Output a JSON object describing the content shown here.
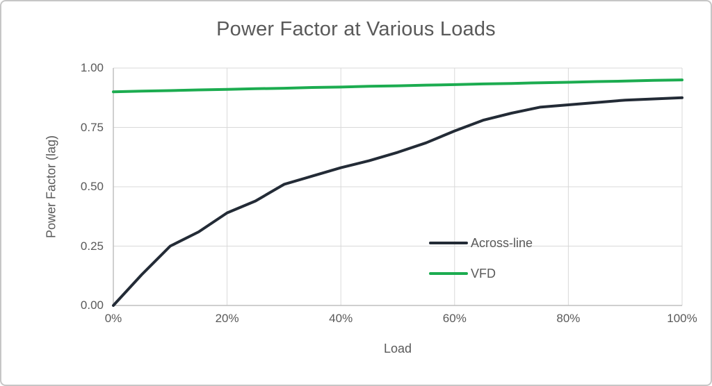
{
  "chart_data": {
    "type": "line",
    "title": "Power Factor at Various Loads",
    "xlabel": "Load",
    "ylabel": "Power Factor (lag)",
    "xlim": [
      0,
      100
    ],
    "ylim": [
      0,
      1
    ],
    "grid": true,
    "legend_position": "inside-center-right",
    "xticks": {
      "values": [
        0,
        20,
        40,
        60,
        80,
        100
      ],
      "labels": [
        "0%",
        "20%",
        "40%",
        "60%",
        "80%",
        "100%"
      ]
    },
    "yticks": {
      "values": [
        0,
        0.25,
        0.5,
        0.75,
        1
      ],
      "labels": [
        "0.00",
        "0.25",
        "0.50",
        "0.75",
        "1.00"
      ]
    },
    "x": [
      0,
      5,
      10,
      15,
      20,
      25,
      30,
      35,
      40,
      45,
      50,
      55,
      60,
      65,
      70,
      75,
      80,
      85,
      90,
      95,
      100
    ],
    "series": [
      {
        "name": "Across-line",
        "color": "#232B36",
        "values": [
          0.0,
          0.13,
          0.25,
          0.31,
          0.39,
          0.44,
          0.51,
          0.545,
          0.58,
          0.61,
          0.645,
          0.685,
          0.735,
          0.78,
          0.81,
          0.835,
          0.845,
          0.855,
          0.865,
          0.87,
          0.875
        ]
      },
      {
        "name": "VFD",
        "color": "#1CAC50",
        "values": [
          0.9,
          0.903,
          0.905,
          0.908,
          0.91,
          0.913,
          0.915,
          0.918,
          0.92,
          0.923,
          0.925,
          0.928,
          0.93,
          0.933,
          0.935,
          0.938,
          0.94,
          0.943,
          0.945,
          0.948,
          0.95
        ]
      }
    ],
    "colors": {
      "text": "#595959",
      "grid": "#D9D9D9",
      "axis": "#BFBFBF",
      "background": "#FFFFFF",
      "border": "#C6C6C6"
    }
  }
}
